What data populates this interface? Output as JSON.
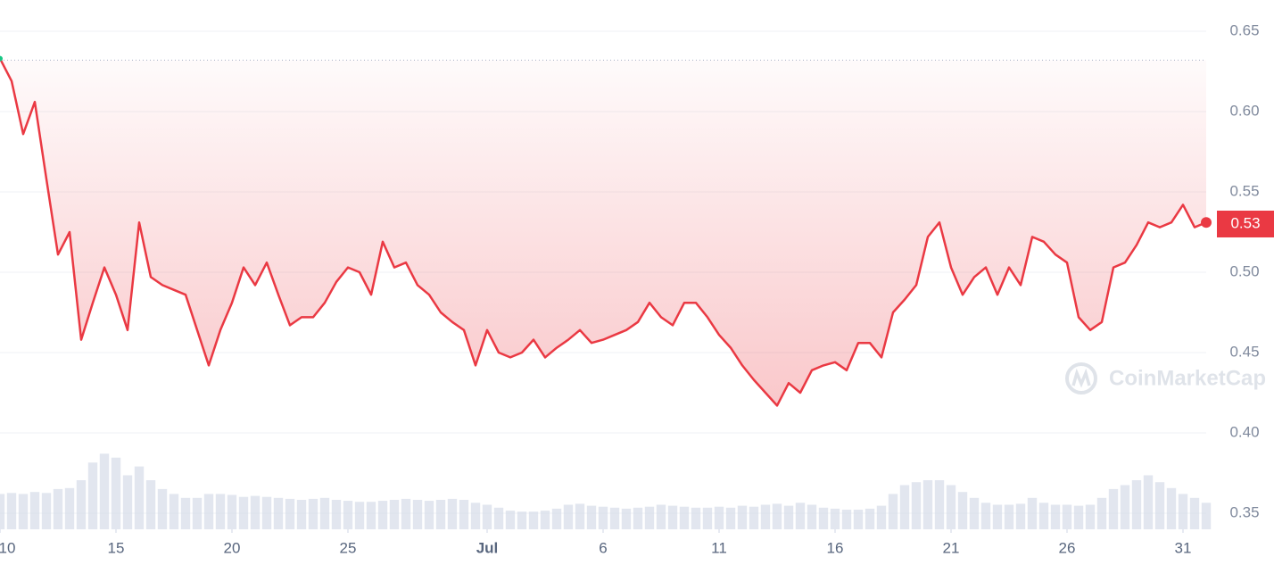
{
  "chart_data": {
    "type": "line",
    "x": [
      0,
      0.5,
      1,
      1.5,
      2,
      2.5,
      3,
      3.5,
      4,
      4.5,
      5,
      5.5,
      6,
      6.5,
      7,
      7.5,
      8,
      8.5,
      9,
      9.5,
      10,
      10.5,
      11,
      11.5,
      12,
      12.5,
      13,
      13.5,
      14,
      14.5,
      15,
      15.5,
      16,
      16.5,
      17,
      17.5,
      18,
      18.5,
      19,
      19.5,
      20,
      20.5,
      21,
      21.5,
      22,
      22.5,
      23,
      23.5,
      24,
      24.5,
      25,
      25.5,
      26,
      26.5,
      27,
      27.5,
      28,
      28.5,
      29,
      29.5,
      30,
      30.5,
      31,
      31.5,
      32,
      32.5,
      33,
      33.5,
      34,
      34.5,
      35,
      35.5,
      36,
      36.5,
      37,
      37.5,
      38,
      38.5,
      39,
      39.5,
      40,
      40.5,
      41,
      41.5,
      42,
      42.5,
      43,
      43.5,
      44,
      44.5,
      45,
      45.5,
      46,
      46.5,
      47,
      47.5,
      48,
      48.5,
      49,
      49.5,
      50,
      50.5,
      51,
      51.5,
      52
    ],
    "series": [
      {
        "name": "Price",
        "color": "#ea3943",
        "values": [
          0.633,
          0.619,
          0.586,
          0.606,
          0.558,
          0.511,
          0.525,
          0.458,
          0.481,
          0.503,
          0.486,
          0.464,
          0.531,
          0.497,
          0.492,
          0.489,
          0.486,
          0.464,
          0.442,
          0.464,
          0.481,
          0.503,
          0.492,
          0.506,
          0.486,
          0.467,
          0.472,
          0.472,
          0.481,
          0.494,
          0.503,
          0.5,
          0.486,
          0.519,
          0.503,
          0.506,
          0.492,
          0.486,
          0.475,
          0.469,
          0.464,
          0.442,
          0.464,
          0.45,
          0.447,
          0.45,
          0.458,
          0.447,
          0.453,
          0.458,
          0.464,
          0.456,
          0.458,
          0.461,
          0.464,
          0.469,
          0.481,
          0.472,
          0.467,
          0.481,
          0.481,
          0.472,
          0.461,
          0.453,
          0.442,
          0.433,
          0.425,
          0.417,
          0.431,
          0.425,
          0.439,
          0.442,
          0.444,
          0.439,
          0.456,
          0.456,
          0.447,
          0.475,
          0.483,
          0.492,
          0.522,
          0.531,
          0.503,
          0.486,
          0.497,
          0.503,
          0.486,
          0.503,
          0.492,
          0.522,
          0.519,
          0.511,
          0.506,
          0.472,
          0.464,
          0.469,
          0.503,
          0.506,
          0.517,
          0.531,
          0.528,
          0.531,
          0.542,
          0.528,
          0.531
        ]
      },
      {
        "name": "Volume",
        "color": "#cfd6e4",
        "axis": "y2",
        "values": [
          36,
          37,
          36,
          38,
          37,
          41,
          42,
          50,
          68,
          77,
          73,
          55,
          64,
          50,
          41,
          36,
          32,
          32,
          36,
          36,
          35,
          33,
          34,
          33,
          32,
          31,
          30,
          31,
          32,
          30,
          29,
          28,
          28,
          29,
          30,
          31,
          30,
          29,
          30,
          31,
          30,
          27,
          25,
          22,
          19,
          18,
          18,
          19,
          21,
          25,
          26,
          24,
          23,
          22,
          21,
          22,
          23,
          25,
          24,
          23,
          22,
          22,
          23,
          22,
          24,
          23,
          25,
          26,
          24,
          27,
          25,
          22,
          21,
          20,
          20,
          21,
          24,
          36,
          45,
          48,
          50,
          50,
          45,
          38,
          32,
          27,
          25,
          25,
          26,
          32,
          27,
          25,
          25,
          24,
          25,
          32,
          41,
          45,
          50,
          55,
          48,
          42,
          36,
          32,
          27
        ]
      }
    ],
    "xlim": [
      0,
      52
    ],
    "xticks": [
      {
        "value": 0,
        "label": "10"
      },
      {
        "value": 5,
        "label": "15"
      },
      {
        "value": 10,
        "label": "20"
      },
      {
        "value": 15,
        "label": "25"
      },
      {
        "value": 21,
        "label": "Jul"
      },
      {
        "value": 26,
        "label": "6"
      },
      {
        "value": 31,
        "label": "11"
      },
      {
        "value": 36,
        "label": "16"
      },
      {
        "value": 41,
        "label": "21"
      },
      {
        "value": 46,
        "label": "26"
      },
      {
        "value": 51,
        "label": "31"
      }
    ],
    "ylim": [
      0.34,
      0.67
    ],
    "yticks": [
      {
        "value": 0.35,
        "label": "0.35"
      },
      {
        "value": 0.4,
        "label": "0.40"
      },
      {
        "value": 0.45,
        "label": "0.45"
      },
      {
        "value": 0.5,
        "label": "0.50"
      },
      {
        "value": 0.55,
        "label": "0.55"
      },
      {
        "value": 0.6,
        "label": "0.60"
      },
      {
        "value": 0.65,
        "label": "0.65"
      }
    ],
    "y2lim": [
      0,
      100
    ],
    "open_price": 0.632,
    "current_price": 0.53,
    "grid": true,
    "watermark": "CoinMarketCap"
  }
}
